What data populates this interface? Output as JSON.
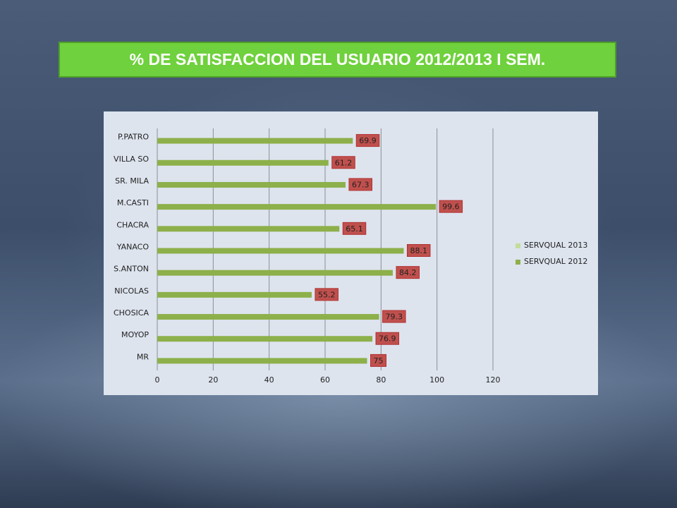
{
  "chart_data": {
    "type": "bar",
    "orientation": "horizontal",
    "title": "% DE SATISFACCION DEL USUARIO 2012/2013 I SEM.",
    "categories": [
      "P.PATRO",
      "VILLA SO",
      "SR. MILA",
      "M.CASTI",
      "CHACRA",
      "YANACO",
      "S.ANTON",
      "NICOLAS",
      "CHOSICA",
      "MOYOP",
      "MR"
    ],
    "series": [
      {
        "name": "SERVQUAL 2013",
        "color": "#c3dc9a",
        "values": [
          null,
          null,
          null,
          null,
          null,
          null,
          null,
          null,
          null,
          null,
          null
        ]
      },
      {
        "name": "SERVQUAL 2012",
        "color": "#8db04a",
        "values": [
          69.9,
          61.2,
          67.3,
          99.6,
          65.1,
          88.1,
          84.2,
          55.2,
          79.3,
          76.9,
          75
        ]
      }
    ],
    "xlim": [
      0,
      120
    ],
    "xticks": [
      0,
      20,
      40,
      60,
      80,
      100,
      120
    ],
    "grid": true,
    "legend": "right"
  }
}
